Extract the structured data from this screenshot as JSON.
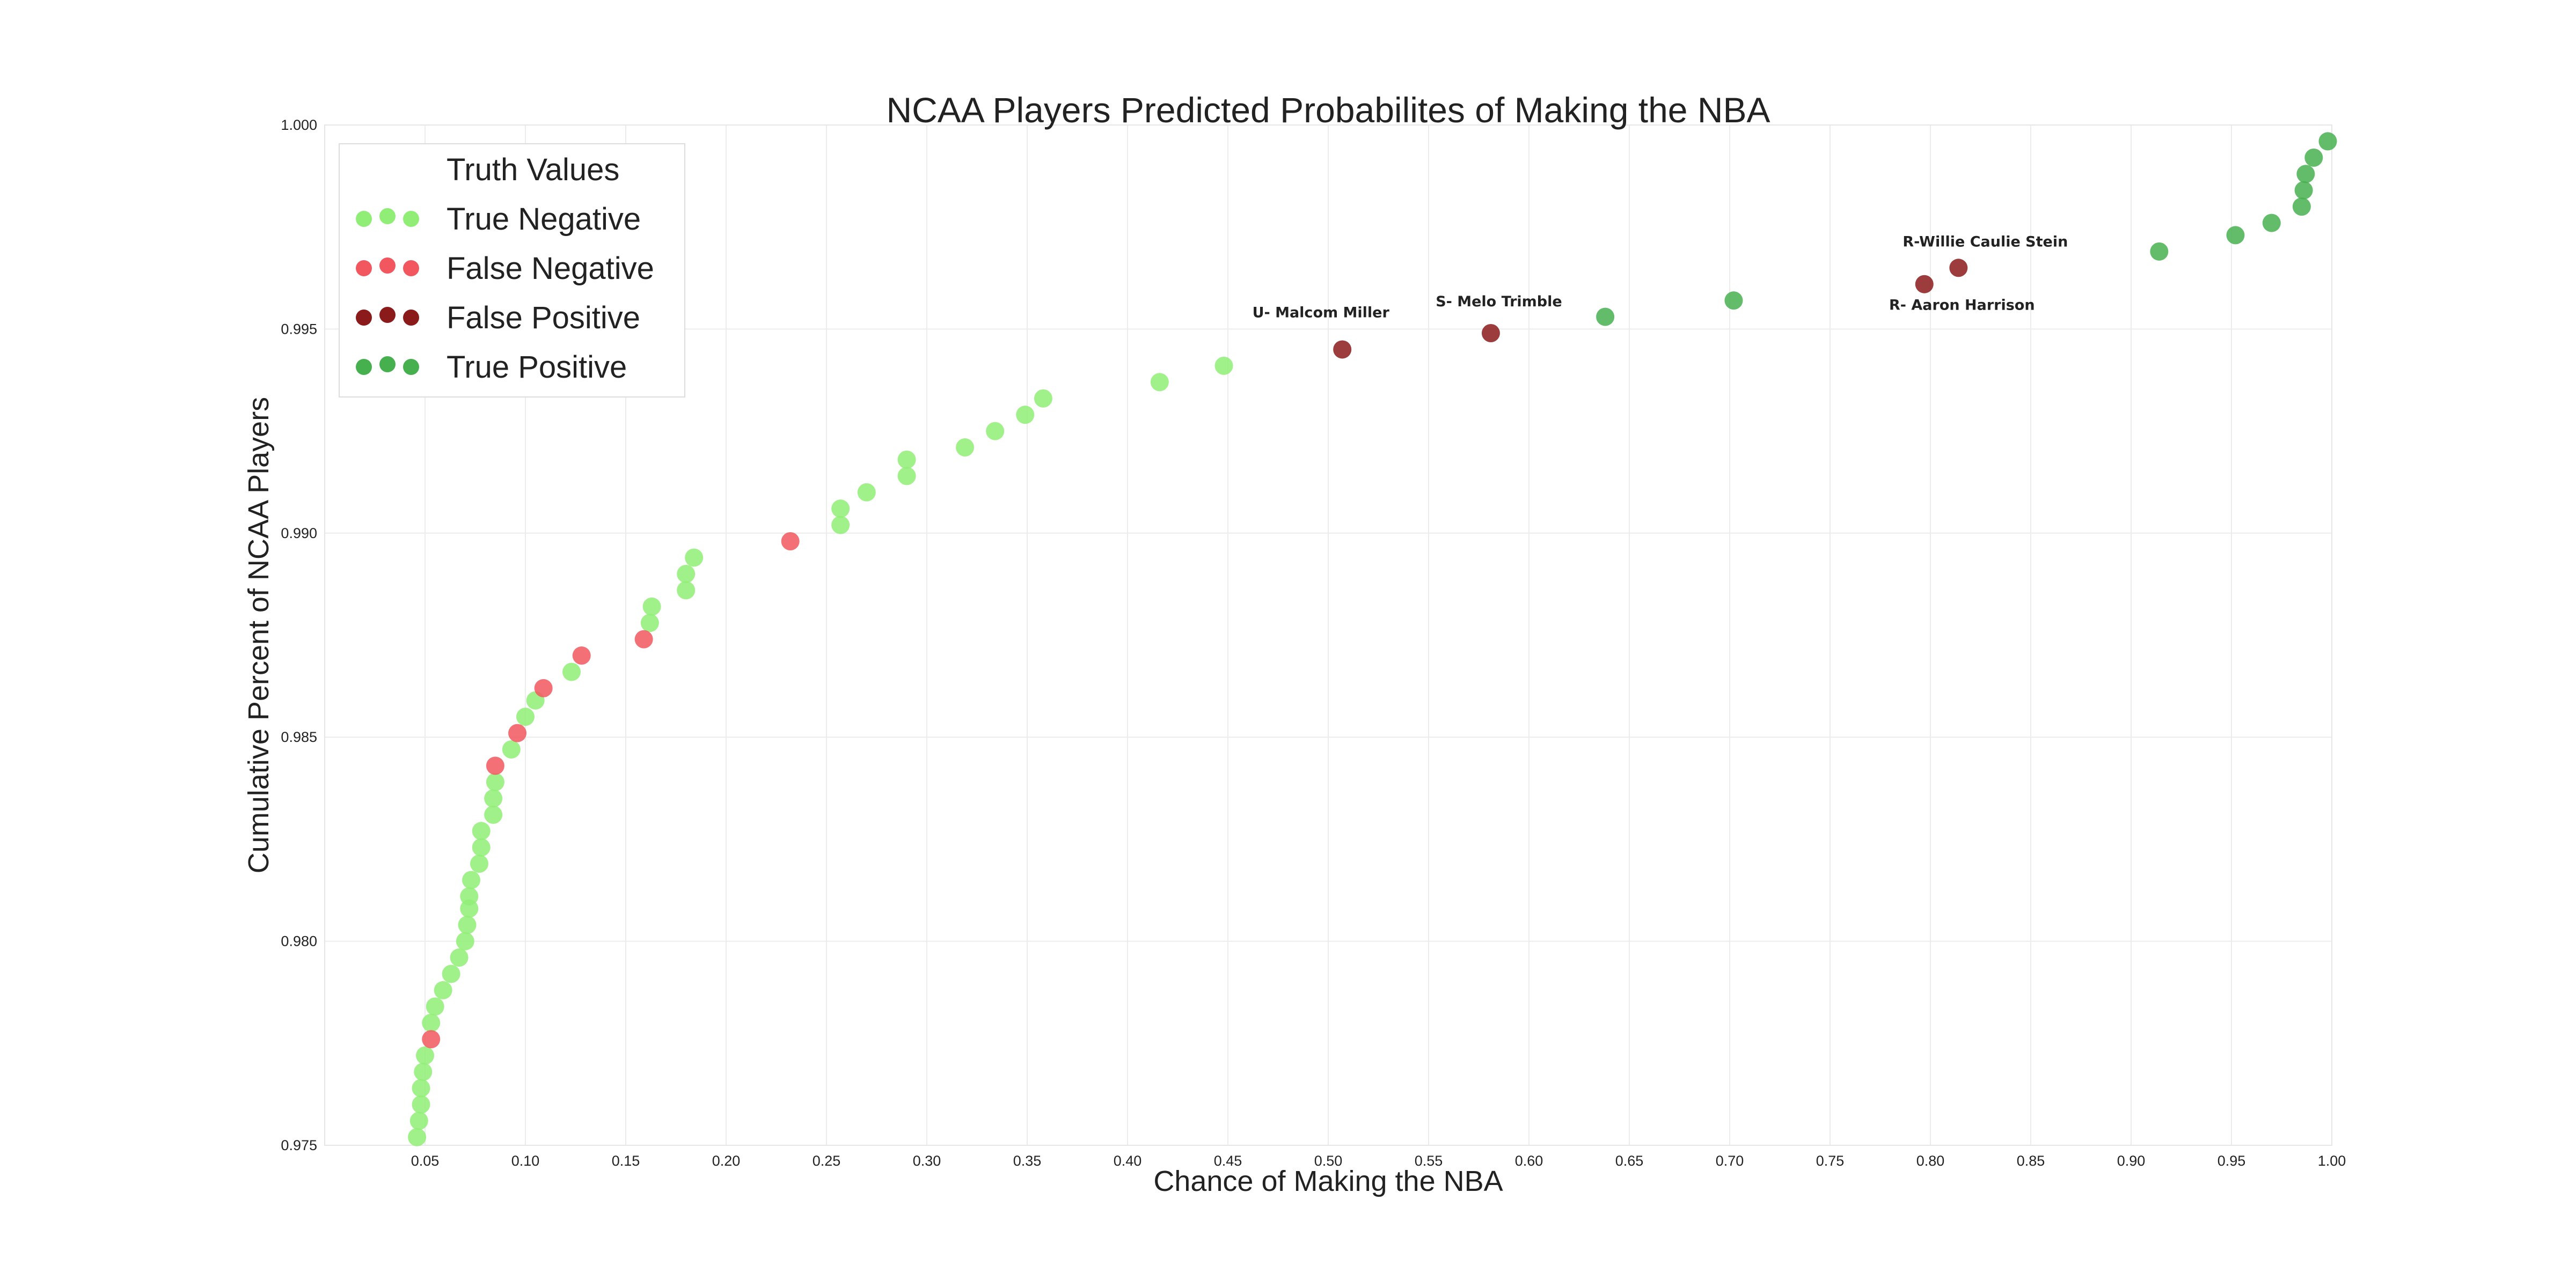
{
  "chart_data": {
    "type": "scatter",
    "title": "NCAA Players Predicted Probabilites of Making the NBA",
    "xlabel": "Chance of Making the NBA",
    "ylabel": "Cumulative Percent of NCAA Players",
    "xlim": [
      0.0,
      1.0
    ],
    "ylim": [
      0.975,
      1.0
    ],
    "x_ticks": [
      "0.05",
      "0.10",
      "0.15",
      "0.20",
      "0.25",
      "0.30",
      "0.35",
      "0.40",
      "0.45",
      "0.50",
      "0.55",
      "0.60",
      "0.65",
      "0.70",
      "0.75",
      "0.80",
      "0.85",
      "0.90",
      "0.95",
      "1.00"
    ],
    "y_ticks": [
      "0.975",
      "0.980",
      "0.985",
      "0.990",
      "0.995",
      "1.000"
    ],
    "grid": true,
    "legend": {
      "title": "Truth Values",
      "placement": "top-left",
      "entries": [
        "True Negative",
        "False Negative",
        "False Positive",
        "True Positive"
      ]
    },
    "series": [
      {
        "name": "True Negative",
        "color": "#90ee77",
        "points": [
          [
            0.046,
            0.9752
          ],
          [
            0.047,
            0.9756
          ],
          [
            0.048,
            0.976
          ],
          [
            0.048,
            0.9764
          ],
          [
            0.049,
            0.9768
          ],
          [
            0.05,
            0.9772
          ],
          [
            0.053,
            0.978
          ],
          [
            0.055,
            0.9784
          ],
          [
            0.059,
            0.9788
          ],
          [
            0.063,
            0.9792
          ],
          [
            0.067,
            0.9796
          ],
          [
            0.07,
            0.98
          ],
          [
            0.071,
            0.9804
          ],
          [
            0.072,
            0.9808
          ],
          [
            0.072,
            0.9811
          ],
          [
            0.073,
            0.9815
          ],
          [
            0.077,
            0.9819
          ],
          [
            0.078,
            0.9823
          ],
          [
            0.078,
            0.9827
          ],
          [
            0.084,
            0.9831
          ],
          [
            0.084,
            0.9835
          ],
          [
            0.085,
            0.9839
          ],
          [
            0.093,
            0.9847
          ],
          [
            0.1,
            0.9855
          ],
          [
            0.105,
            0.9859
          ],
          [
            0.123,
            0.9866
          ],
          [
            0.162,
            0.9878
          ],
          [
            0.163,
            0.9882
          ],
          [
            0.18,
            0.9886
          ],
          [
            0.18,
            0.989
          ],
          [
            0.184,
            0.9894
          ],
          [
            0.257,
            0.9902
          ],
          [
            0.257,
            0.9906
          ],
          [
            0.27,
            0.991
          ],
          [
            0.29,
            0.9914
          ],
          [
            0.29,
            0.9918
          ],
          [
            0.319,
            0.9921
          ],
          [
            0.334,
            0.9925
          ],
          [
            0.349,
            0.9929
          ],
          [
            0.358,
            0.9933
          ],
          [
            0.416,
            0.9937
          ],
          [
            0.448,
            0.9941
          ]
        ]
      },
      {
        "name": "False Negative",
        "color": "#f2575f",
        "points": [
          [
            0.053,
            0.9776
          ],
          [
            0.085,
            0.9843
          ],
          [
            0.096,
            0.9851
          ],
          [
            0.109,
            0.9862
          ],
          [
            0.128,
            0.987
          ],
          [
            0.159,
            0.9874
          ],
          [
            0.232,
            0.9898
          ]
        ]
      },
      {
        "name": "False Positive",
        "color": "#8b1a1a",
        "points": [
          [
            0.507,
            0.9945
          ],
          [
            0.581,
            0.9949
          ],
          [
            0.797,
            0.9961
          ],
          [
            0.814,
            0.9965
          ]
        ]
      },
      {
        "name": "True Positive",
        "color": "#46b04f",
        "points": [
          [
            0.638,
            0.9953
          ],
          [
            0.702,
            0.9957
          ],
          [
            0.914,
            0.9969
          ],
          [
            0.952,
            0.9973
          ],
          [
            0.97,
            0.9976
          ],
          [
            0.985,
            0.998
          ],
          [
            0.986,
            0.9984
          ],
          [
            0.987,
            0.9988
          ],
          [
            0.991,
            0.9992
          ],
          [
            0.998,
            0.9996
          ]
        ]
      }
    ],
    "annotations": [
      {
        "text": "U- Malcom Miller",
        "x": 0.507,
        "y": 0.9945
      },
      {
        "text": "S- Melo Trimble",
        "x": 0.581,
        "y": 0.9949
      },
      {
        "text": "R- Aaron Harrison",
        "x": 0.797,
        "y": 0.9961
      },
      {
        "text": "R-Willie Caulie Stein",
        "x": 0.814,
        "y": 0.9965
      }
    ]
  }
}
